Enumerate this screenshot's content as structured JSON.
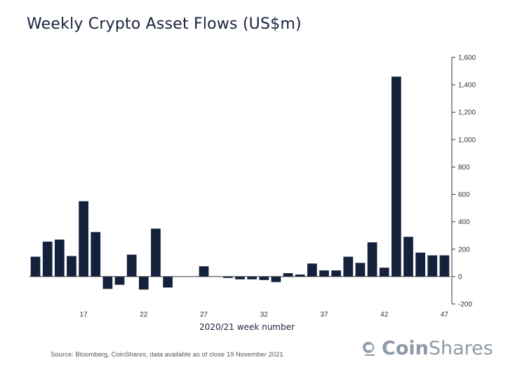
{
  "title": "Weekly Crypto Asset Flows (US$m)",
  "source": "Source: Bloomberg, CoinShares, data available as of close 19 November 2021",
  "logo": {
    "part1": "Coin",
    "part2": "Shares",
    "icon": "coinshares-logo-icon"
  },
  "colors": {
    "bar": "#14213d",
    "axis": "#333333"
  },
  "chart_data": {
    "type": "bar",
    "title": "Weekly Crypto Asset Flows (US$m)",
    "xlabel": "2020/21 week number",
    "ylabel": "",
    "ylim": [
      -200,
      1600
    ],
    "yticks": [
      -200,
      0,
      200,
      400,
      600,
      800,
      1000,
      1200,
      1400,
      1600
    ],
    "ytick_labels": [
      "-200",
      "0",
      "200",
      "400",
      "600",
      "800",
      "1,000",
      "1,200",
      "1,400",
      "1,600"
    ],
    "y_axis_side": "right",
    "grid": false,
    "xtick_labels": [
      "17",
      "22",
      "27",
      "32",
      "37",
      "42",
      "47"
    ],
    "xtick_values": [
      17,
      22,
      27,
      32,
      37,
      42,
      47
    ],
    "x": [
      13,
      14,
      15,
      16,
      17,
      18,
      19,
      20,
      21,
      22,
      23,
      24,
      25,
      26,
      27,
      28,
      29,
      30,
      31,
      32,
      33,
      34,
      35,
      36,
      37,
      38,
      39,
      40,
      41,
      42,
      43,
      44,
      45,
      46,
      47
    ],
    "values": [
      145,
      255,
      270,
      150,
      550,
      325,
      -90,
      -60,
      160,
      -95,
      350,
      -80,
      0,
      0,
      75,
      0,
      -10,
      -20,
      -20,
      -25,
      -40,
      25,
      15,
      95,
      45,
      45,
      145,
      100,
      250,
      65,
      1460,
      290,
      175,
      155,
      155
    ]
  }
}
